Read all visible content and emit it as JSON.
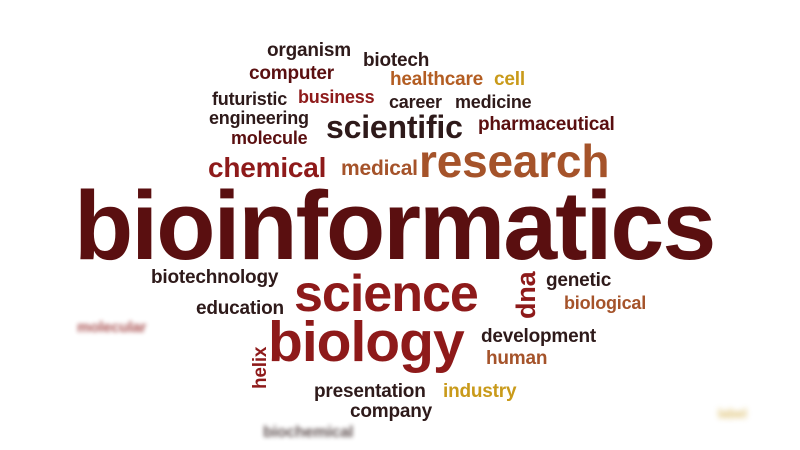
{
  "word_cloud": {
    "theme": "bioinformatics",
    "colors": {
      "dark_maroon": "#5a0f10",
      "dark": "#2e1a1a",
      "crimson": "#8e1a1a",
      "brown_orange": "#a5532a",
      "orange": "#b35d22",
      "gold": "#c99a1a"
    },
    "words": {
      "bioinformatics": "bioinformatics",
      "science": "science",
      "biology": "biology",
      "research": "research",
      "scientific": "scientific",
      "chemical": "chemical",
      "medical": "medical",
      "organism": "organism",
      "biotech": "biotech",
      "computer": "computer",
      "healthcare": "healthcare",
      "cell": "cell",
      "futuristic": "futuristic",
      "business": "business",
      "career": "career",
      "medicine": "medicine",
      "engineering": "engineering",
      "molecule": "molecule",
      "pharmaceutical": "pharmaceutical",
      "biotechnology": "biotechnology",
      "education": "education",
      "dna": "dna",
      "genetic": "genetic",
      "biological": "biological",
      "molecular": "molecular",
      "development": "development",
      "human": "human",
      "helix": "helix",
      "presentation": "presentation",
      "industry": "industry",
      "company": "company",
      "biochemical": "biochemical",
      "blurred_fragment": "label"
    }
  }
}
